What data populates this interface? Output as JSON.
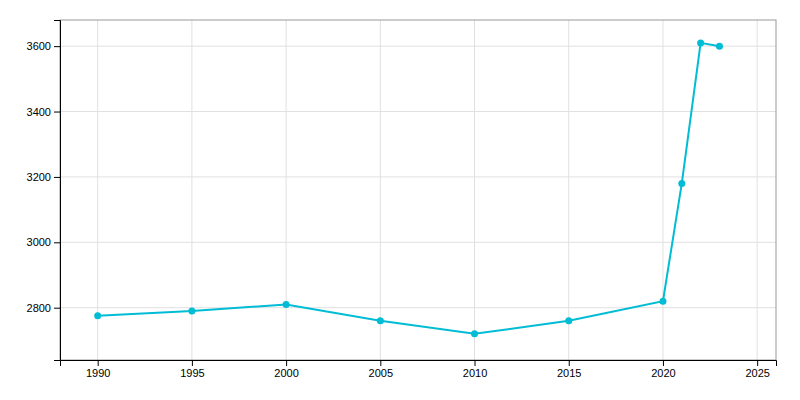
{
  "chart_data": {
    "type": "line",
    "x": [
      1990,
      1995,
      2000,
      2005,
      2010,
      2015,
      2020,
      2021,
      2022,
      2023
    ],
    "values": [
      2775,
      2790,
      2810,
      2760,
      2720,
      2760,
      2820,
      3180,
      3610,
      3600
    ],
    "color": "#00BCD4",
    "marker": "circle",
    "xlim": [
      1988,
      2026
    ],
    "ylim": [
      2640,
      3680
    ],
    "xticks": [
      1990,
      1995,
      2000,
      2005,
      2010,
      2015,
      2020,
      2025
    ],
    "yticks": [
      2800,
      3000,
      3200,
      3400,
      3600
    ],
    "grid": true
  }
}
